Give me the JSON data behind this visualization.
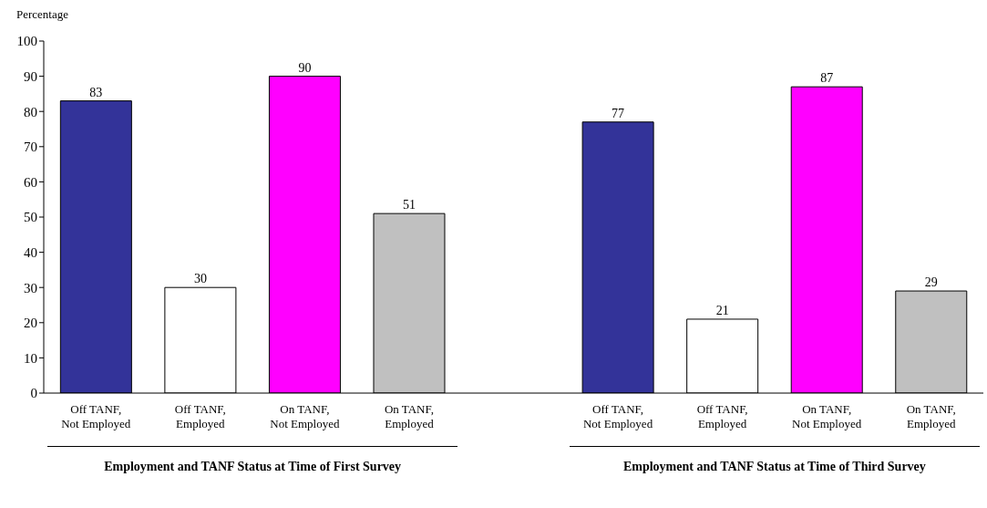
{
  "chart_data": {
    "type": "bar",
    "ylabel": "Percentage",
    "categories": [
      "Off TANF, Not Employed",
      "Off TANF, Employed",
      "On TANF, Not Employed",
      "On TANF, Employed",
      null,
      "Off TANF, Not Employed",
      "Off TANF, Employed",
      "On TANF, Not Employed",
      "On TANF, Employed"
    ],
    "values": [
      83,
      30,
      90,
      51,
      null,
      77,
      21,
      87,
      29
    ],
    "colors": [
      "#333399",
      "#ffffff",
      "#ff00ff",
      "#c0c0c0",
      null,
      "#333399",
      "#ffffff",
      "#ff00ff",
      "#c0c0c0"
    ],
    "ylim": [
      0,
      100
    ],
    "yticks": [
      0,
      10,
      20,
      30,
      40,
      50,
      60,
      70,
      80,
      90,
      100
    ],
    "data_labels": true,
    "annotations": [
      "Employment and TANF Status at Time of First Survey",
      "Employment and TANF Status at Time of Third Survey"
    ]
  }
}
